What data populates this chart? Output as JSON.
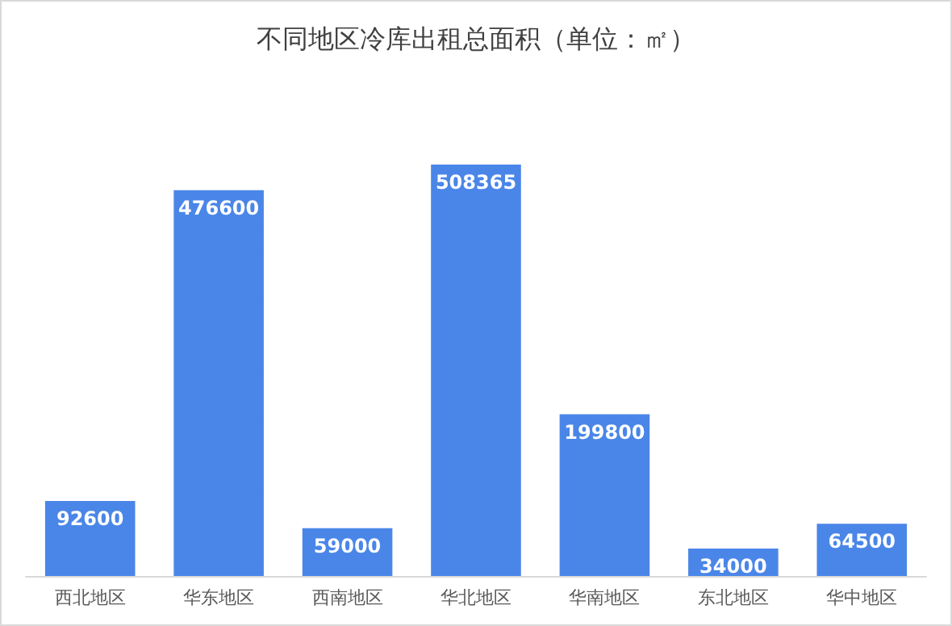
{
  "chart_data": {
    "type": "bar",
    "title": "不同地区冷库出租总面积（单位：㎡）",
    "categories": [
      "西北地区",
      "华东地区",
      "西南地区",
      "华北地区",
      "华南地区",
      "东北地区",
      "华中地区"
    ],
    "values": [
      92600,
      476600,
      59000,
      508365,
      199800,
      34000,
      64500
    ],
    "color": "#4a86e8",
    "data_labels": true
  }
}
